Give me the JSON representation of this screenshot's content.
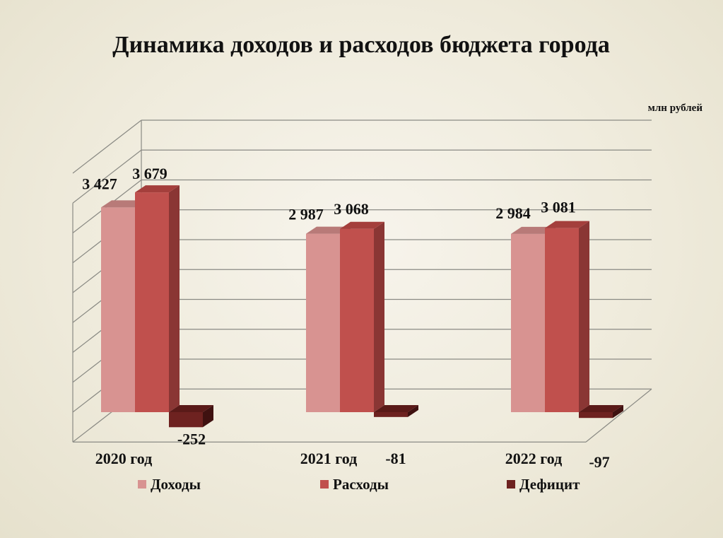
{
  "chart_data": {
    "type": "bar",
    "title": "Динамика  доходов  и расходов  бюджета  города",
    "unit_label": "млн рублей",
    "categories": [
      "2020 год",
      "2021 год",
      "2022 год"
    ],
    "series": [
      {
        "name": "Доходы",
        "values": [
          3427,
          2987,
          2984
        ],
        "labels": [
          "3 427",
          "2 987",
          "2 984"
        ]
      },
      {
        "name": "Расходы",
        "values": [
          3679,
          3068,
          3081
        ],
        "labels": [
          "3 679",
          "3 068",
          "3 081"
        ]
      },
      {
        "name": "Дефицит",
        "values": [
          -252,
          -81,
          -97
        ],
        "labels": [
          "-252",
          "-81",
          "-97"
        ]
      }
    ],
    "ylim": [
      -500,
      4000
    ],
    "grid": true,
    "legend_position": "bottom",
    "three_d": true,
    "colors": {
      "Доходы": {
        "front": "#d89391",
        "top": "#b87a78",
        "side": "#a0615f"
      },
      "Расходы": {
        "front": "#c0504d",
        "top": "#a43f3c",
        "side": "#8a3634"
      },
      "Дефицит": {
        "front": "#6e2220",
        "top": "#5a1a18",
        "side": "#3f1110"
      }
    }
  }
}
